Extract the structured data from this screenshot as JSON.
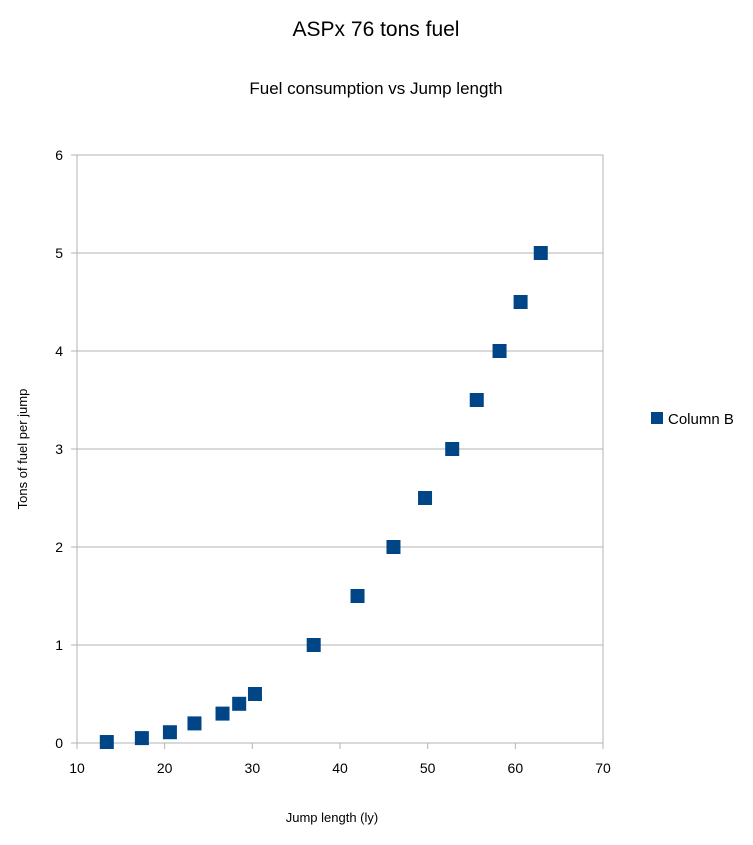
{
  "chart_data": {
    "type": "scatter",
    "title": "ASPx 76 tons fuel",
    "subtitle": "Fuel consumption vs Jump length",
    "xlabel": "Jump length (ly)",
    "ylabel": "Tons of fuel per jump",
    "xlim": [
      10,
      70
    ],
    "ylim": [
      0,
      6
    ],
    "xticks": [
      "10",
      "20",
      "30",
      "40",
      "50",
      "60",
      "70"
    ],
    "yticks": [
      "0",
      "1",
      "2",
      "3",
      "4",
      "5",
      "6"
    ],
    "grid": "horizontal",
    "legend_position": "right",
    "series": [
      {
        "name": "Column B",
        "color": "#004586",
        "marker": "square",
        "x": [
          13.4,
          17.4,
          20.6,
          23.4,
          26.6,
          28.5,
          30.3,
          37.0,
          42.0,
          46.1,
          49.7,
          52.8,
          55.6,
          58.2,
          60.6,
          62.9
        ],
        "y": [
          0.01,
          0.05,
          0.11,
          0.2,
          0.3,
          0.4,
          0.5,
          1.0,
          1.5,
          2.0,
          2.5,
          3.0,
          3.5,
          4.0,
          4.5,
          5.0
        ]
      }
    ]
  }
}
